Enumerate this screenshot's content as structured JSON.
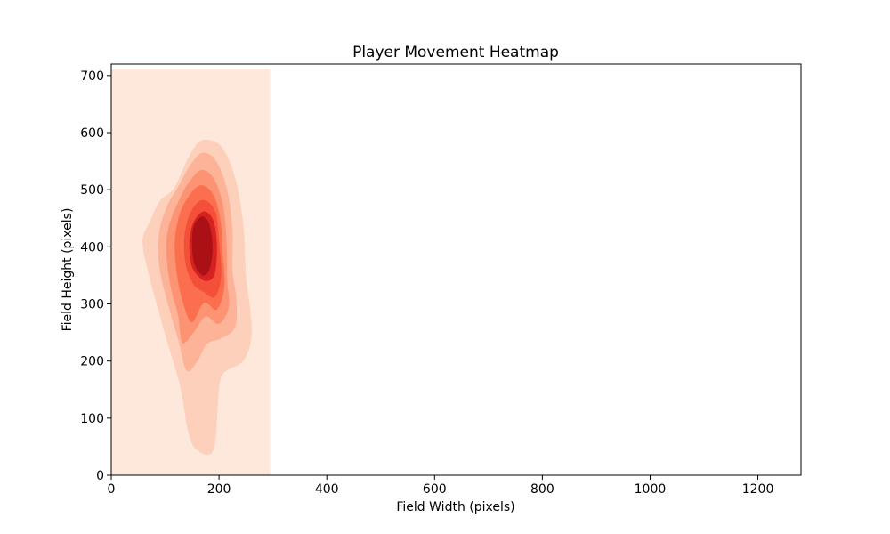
{
  "chart_data": {
    "type": "heatmap",
    "subtype": "kde-filled-contour",
    "title": "Player Movement Heatmap",
    "xlabel": "Field Width (pixels)",
    "ylabel": "Field Height (pixels)",
    "xlim": [
      0,
      1280
    ],
    "ylim": [
      0,
      720
    ],
    "xticks": [
      0,
      200,
      400,
      600,
      800,
      1000,
      1200
    ],
    "yticks": [
      0,
      100,
      200,
      300,
      400,
      500,
      600,
      700
    ],
    "grid": false,
    "colormap": "Reds",
    "peak": {
      "x": 170,
      "y": 405
    },
    "contour_extent": {
      "x": [
        0,
        295
      ],
      "y": [
        0,
        712
      ]
    },
    "levels": [
      {
        "color": "#fee8dc",
        "points": [
          [
            0,
            0
          ],
          [
            295,
            0
          ],
          [
            295,
            712
          ],
          [
            0,
            712
          ]
        ]
      },
      {
        "color": "#fdd0bc",
        "points": [
          [
            158,
            45
          ],
          [
            190,
            45
          ],
          [
            200,
            150
          ],
          [
            210,
            180
          ],
          [
            245,
            200
          ],
          [
            260,
            240
          ],
          [
            258,
            290
          ],
          [
            250,
            350
          ],
          [
            245,
            440
          ],
          [
            230,
            520
          ],
          [
            205,
            575
          ],
          [
            170,
            587
          ],
          [
            145,
            560
          ],
          [
            118,
            505
          ],
          [
            90,
            480
          ],
          [
            72,
            445
          ],
          [
            58,
            410
          ],
          [
            70,
            350
          ],
          [
            90,
            280
          ],
          [
            105,
            230
          ],
          [
            128,
            155
          ],
          [
            142,
            80
          ]
        ]
      },
      {
        "color": "#fcb398",
        "points": [
          [
            140,
            183
          ],
          [
            160,
            200
          ],
          [
            178,
            230
          ],
          [
            205,
            240
          ],
          [
            230,
            260
          ],
          [
            232,
            310
          ],
          [
            225,
            360
          ],
          [
            225,
            430
          ],
          [
            215,
            500
          ],
          [
            195,
            550
          ],
          [
            170,
            565
          ],
          [
            148,
            545
          ],
          [
            127,
            510
          ],
          [
            103,
            470
          ],
          [
            88,
            420
          ],
          [
            90,
            360
          ],
          [
            108,
            290
          ],
          [
            125,
            235
          ]
        ]
      },
      {
        "color": "#fc9474",
        "points": [
          [
            132,
            232
          ],
          [
            153,
            250
          ],
          [
            175,
            278
          ],
          [
            200,
            265
          ],
          [
            218,
            295
          ],
          [
            215,
            345
          ],
          [
            214,
            410
          ],
          [
            207,
            475
          ],
          [
            190,
            520
          ],
          [
            168,
            535
          ],
          [
            148,
            518
          ],
          [
            130,
            490
          ],
          [
            108,
            440
          ],
          [
            102,
            395
          ],
          [
            110,
            330
          ],
          [
            124,
            280
          ]
        ]
      },
      {
        "color": "#fb6e4e",
        "points": [
          [
            150,
            268
          ],
          [
            172,
            302
          ],
          [
            196,
            290
          ],
          [
            210,
            330
          ],
          [
            207,
            385
          ],
          [
            203,
            445
          ],
          [
            190,
            490
          ],
          [
            168,
            508
          ],
          [
            148,
            494
          ],
          [
            128,
            460
          ],
          [
            118,
            410
          ],
          [
            122,
            350
          ],
          [
            134,
            300
          ]
        ]
      },
      {
        "color": "#f44f39",
        "points": [
          [
            170,
            322
          ],
          [
            192,
            312
          ],
          [
            204,
            348
          ],
          [
            200,
            410
          ],
          [
            193,
            462
          ],
          [
            170,
            482
          ],
          [
            148,
            462
          ],
          [
            136,
            420
          ],
          [
            138,
            370
          ],
          [
            152,
            335
          ]
        ]
      },
      {
        "color": "#d52221",
        "points": [
          [
            176,
            340
          ],
          [
            192,
            352
          ],
          [
            196,
            400
          ],
          [
            190,
            445
          ],
          [
            172,
            462
          ],
          [
            152,
            442
          ],
          [
            145,
            405
          ],
          [
            148,
            370
          ],
          [
            160,
            350
          ]
        ]
      },
      {
        "color": "#aa1016",
        "points": [
          [
            170,
            350
          ],
          [
            183,
            362
          ],
          [
            188,
            400
          ],
          [
            182,
            440
          ],
          [
            168,
            453
          ],
          [
            153,
            436
          ],
          [
            150,
            400
          ],
          [
            155,
            368
          ]
        ]
      }
    ]
  }
}
